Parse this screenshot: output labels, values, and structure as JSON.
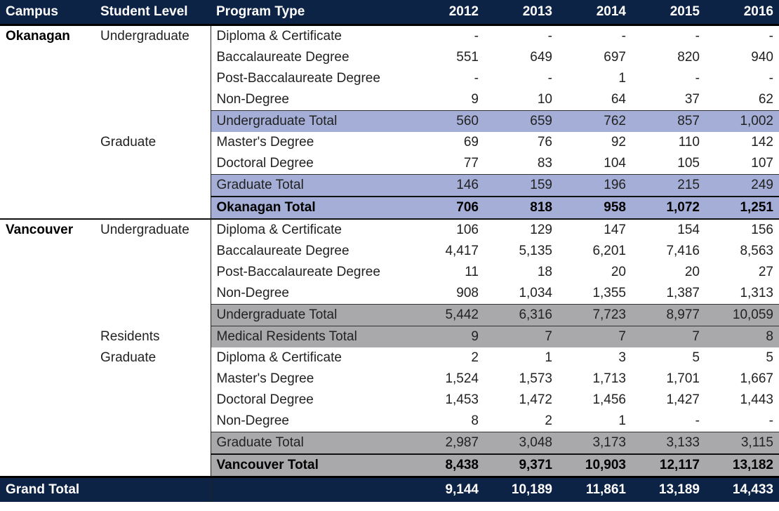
{
  "headers": {
    "campus": "Campus",
    "level": "Student Level",
    "program": "Program Type",
    "years": [
      "2012",
      "2013",
      "2014",
      "2015",
      "2016"
    ]
  },
  "okanagan": {
    "campus": "Okanagan",
    "undergraduate_label": "Undergraduate",
    "graduate_label": "Graduate",
    "rows": [
      {
        "program": "Diploma & Certificate",
        "values": [
          "-",
          "-",
          "-",
          "-",
          "-"
        ]
      },
      {
        "program": "Baccalaureate Degree",
        "values": [
          "551",
          "649",
          "697",
          "820",
          "940"
        ]
      },
      {
        "program": "Post-Baccalaureate Degree",
        "values": [
          "-",
          "-",
          "1",
          "-",
          "-"
        ]
      },
      {
        "program": "Non-Degree",
        "values": [
          "9",
          "10",
          "64",
          "37",
          "62"
        ]
      },
      {
        "program": "Undergraduate Total",
        "values": [
          "560",
          "659",
          "762",
          "857",
          "1,002"
        ]
      },
      {
        "program": "Master's Degree",
        "values": [
          "69",
          "76",
          "92",
          "110",
          "142"
        ]
      },
      {
        "program": "Doctoral Degree",
        "values": [
          "77",
          "83",
          "104",
          "105",
          "107"
        ]
      },
      {
        "program": "Graduate Total",
        "values": [
          "146",
          "159",
          "196",
          "215",
          "249"
        ]
      },
      {
        "program": "Okanagan Total",
        "values": [
          "706",
          "818",
          "958",
          "1,072",
          "1,251"
        ]
      }
    ]
  },
  "vancouver": {
    "campus": "Vancouver",
    "undergraduate_label": "Undergraduate",
    "residents_label": "Residents",
    "graduate_label": "Graduate",
    "rows": [
      {
        "program": "Diploma & Certificate",
        "values": [
          "106",
          "129",
          "147",
          "154",
          "156"
        ]
      },
      {
        "program": "Baccalaureate Degree",
        "values": [
          "4,417",
          "5,135",
          "6,201",
          "7,416",
          "8,563"
        ]
      },
      {
        "program": "Post-Baccalaureate Degree",
        "values": [
          "11",
          "18",
          "20",
          "20",
          "27"
        ]
      },
      {
        "program": "Non-Degree",
        "values": [
          "908",
          "1,034",
          "1,355",
          "1,387",
          "1,313"
        ]
      },
      {
        "program": "Undergraduate Total",
        "values": [
          "5,442",
          "6,316",
          "7,723",
          "8,977",
          "10,059"
        ]
      },
      {
        "program": "Medical Residents Total",
        "values": [
          "9",
          "7",
          "7",
          "7",
          "8"
        ]
      },
      {
        "program": "Diploma & Certificate",
        "values": [
          "2",
          "1",
          "3",
          "5",
          "5"
        ]
      },
      {
        "program": "Master's Degree",
        "values": [
          "1,524",
          "1,573",
          "1,713",
          "1,701",
          "1,667"
        ]
      },
      {
        "program": "Doctoral Degree",
        "values": [
          "1,453",
          "1,472",
          "1,456",
          "1,427",
          "1,443"
        ]
      },
      {
        "program": "Non-Degree",
        "values": [
          "8",
          "2",
          "1",
          "-",
          "-"
        ]
      },
      {
        "program": "Graduate Total",
        "values": [
          "2,987",
          "3,048",
          "3,173",
          "3,133",
          "3,115"
        ]
      },
      {
        "program": "Vancouver Total",
        "values": [
          "8,438",
          "9,371",
          "10,903",
          "12,117",
          "13,182"
        ]
      }
    ]
  },
  "grand_total": {
    "label": "Grand Total",
    "values": [
      "9,144",
      "10,189",
      "11,861",
      "13,189",
      "14,433"
    ]
  }
}
